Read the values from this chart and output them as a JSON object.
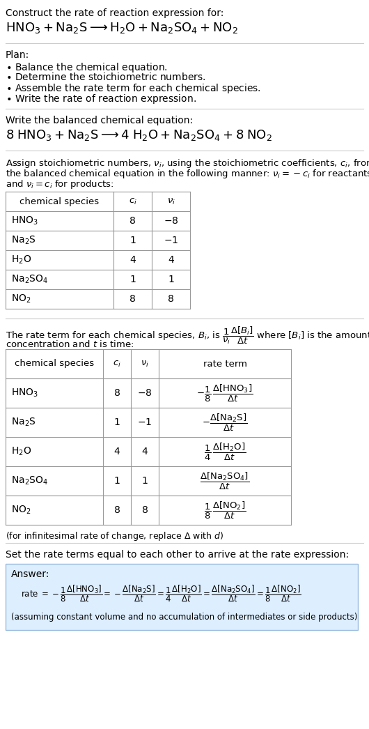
{
  "bg_color": "#ffffff",
  "separator_color": "#cccccc",
  "table_line_color": "#aaaaaa",
  "answer_bg": "#ddeeff",
  "answer_border": "#99bbdd",
  "figsize": [
    5.3,
    10.46
  ],
  "dpi": 100,
  "sections": {
    "s1_title": "Construct the rate of reaction expression for:",
    "s1_eq": "HNO_3 + Na_2S \\longrightarrow H_2O + Na_2SO_4 + NO_2",
    "s2_plan_header": "Plan:",
    "s2_plan_items": [
      "\\bullet  Balance the chemical equation.",
      "\\bullet  Determine the stoichiometric numbers.",
      "\\bullet  Assemble the rate term for each chemical species.",
      "\\bullet  Write the rate of reaction expression."
    ],
    "s3_balanced_header": "Write the balanced chemical equation:",
    "s3_balanced_eq": "8 HNO_3 + Na_2S \\longrightarrow 4 H_2O + Na_2SO_4 + 8 NO_2",
    "s4_stoich_text_line1": "Assign stoichiometric numbers, $\\nu_i$, using the stoichiometric coefficients, $c_i$, from",
    "s4_stoich_text_line2": "the balanced chemical equation in the following manner: $\\nu_i = -c_i$ for reactants",
    "s4_stoich_text_line3": "and $\\nu_i = c_i$ for products:",
    "table1_species": [
      "$\\mathrm{HNO_3}$",
      "$\\mathrm{Na_2S}$",
      "$\\mathrm{H_2O}$",
      "$\\mathrm{Na_2SO_4}$",
      "$\\mathrm{NO_2}$"
    ],
    "table1_ci": [
      "8",
      "1",
      "4",
      "1",
      "8"
    ],
    "table1_nu": [
      "$-8$",
      "$-1$",
      "4",
      "1",
      "8"
    ],
    "s5_rate_line1": "The rate term for each chemical species, $B_i$, is $\\dfrac{1}{\\nu_i}\\dfrac{\\Delta[B_i]}{\\Delta t}$ where $[B_i]$ is the amount",
    "s5_rate_line2": "concentration and $t$ is time:",
    "table2_species": [
      "$\\mathrm{HNO_3}$",
      "$\\mathrm{Na_2S}$",
      "$\\mathrm{H_2O}$",
      "$\\mathrm{Na_2SO_4}$",
      "$\\mathrm{NO_2}$"
    ],
    "table2_ci": [
      "8",
      "1",
      "4",
      "1",
      "8"
    ],
    "table2_nu": [
      "$-8$",
      "$-1$",
      "4",
      "1",
      "8"
    ],
    "table2_rate": [
      "$-\\dfrac{1}{8}\\,\\dfrac{\\Delta[\\mathrm{HNO_3}]}{\\Delta t}$",
      "$-\\dfrac{\\Delta[\\mathrm{Na_2S}]}{\\Delta t}$",
      "$\\dfrac{1}{4}\\,\\dfrac{\\Delta[\\mathrm{H_2O}]}{\\Delta t}$",
      "$\\dfrac{\\Delta[\\mathrm{Na_2SO_4}]}{\\Delta t}$",
      "$\\dfrac{1}{8}\\,\\dfrac{\\Delta[\\mathrm{NO_2}]}{\\Delta t}$"
    ],
    "s5_note": "(for infinitesimal rate of change, replace $\\Delta$ with $d$)",
    "s6_set_equal": "Set the rate terms equal to each other to arrive at the rate expression:",
    "answer_label": "Answer:",
    "answer_rate": "rate $= -\\dfrac{1}{8}\\dfrac{\\Delta[\\mathrm{HNO_3}]}{\\Delta t} = -\\dfrac{\\Delta[\\mathrm{Na_2S}]}{\\Delta t} = \\dfrac{1}{4}\\dfrac{\\Delta[\\mathrm{H_2O}]}{\\Delta t} = \\dfrac{\\Delta[\\mathrm{Na_2SO_4}]}{\\Delta t} = \\dfrac{1}{8}\\dfrac{\\Delta[\\mathrm{NO_2}]}{\\Delta t}$",
    "answer_note": "(assuming constant volume and no accumulation of intermediates or side products)"
  }
}
